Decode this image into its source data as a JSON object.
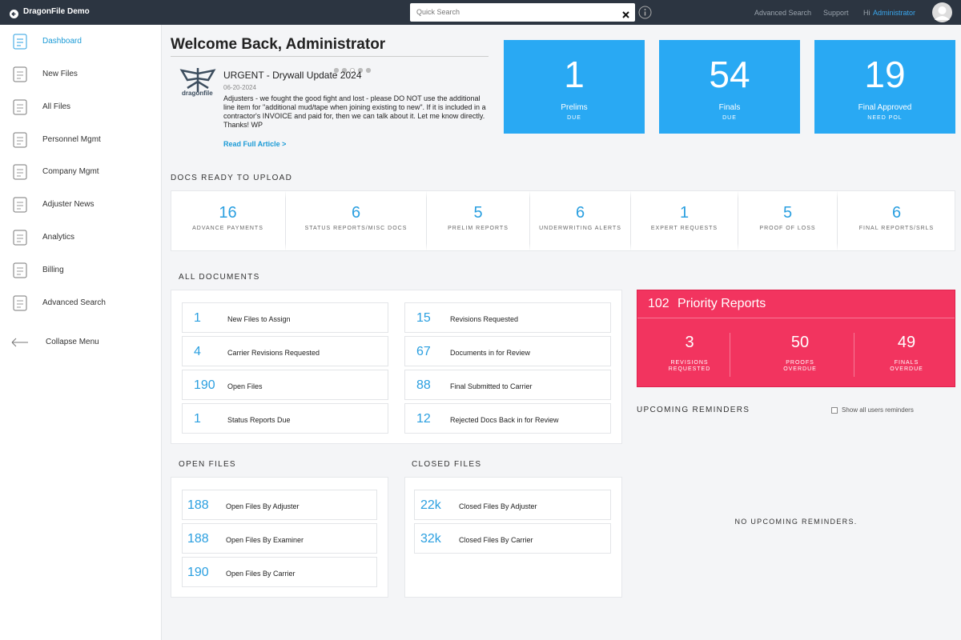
{
  "topbar": {
    "app_name": "DragonFile Demo",
    "search_placeholder": "Quick Search",
    "links": [
      "Advanced Search",
      "Support"
    ],
    "greeting": "Hi",
    "user": "Administrator"
  },
  "sidebar": {
    "items": [
      "Dashboard",
      "New Files",
      "All Files",
      "Personnel Mgmt",
      "Company Mgmt",
      "Adjuster News",
      "Analytics",
      "Billing",
      "Advanced Search",
      "Collapse Menu"
    ]
  },
  "welcome": {
    "title": "Welcome Back, Administrator"
  },
  "news": {
    "logo_text": "dragonfile",
    "title": "URGENT - Drywall Update 2024",
    "date": "06-20-2024",
    "body": "Adjusters - we fought the good fight and lost - please DO NOT use the additional line item for \"additional mud/tape when joining existing to new\". If it is included in a contractor's INVOICE and paid for, then we can talk about it. Let me know directly. Thanks! WP",
    "link": "Read Full Article >"
  },
  "stat_cards": [
    {
      "value": 1,
      "label": "Prelims",
      "sub": "DUE"
    },
    {
      "value": 54,
      "label": "Finals",
      "sub": "DUE"
    },
    {
      "value": 19,
      "label": "Final Approved",
      "sub": "NEED POL"
    }
  ],
  "docs_ready": {
    "heading": "DOCS READY TO UPLOAD",
    "items": [
      {
        "value": 16,
        "label": "ADVANCE PAYMENTS"
      },
      {
        "value": 6,
        "label": "STATUS REPORTS/MISC DOCS"
      },
      {
        "value": 5,
        "label": "PRELIM REPORTS"
      },
      {
        "value": 6,
        "label": "UNDERWRITING ALERTS"
      },
      {
        "value": 1,
        "label": "EXPERT REQUESTS"
      },
      {
        "value": 5,
        "label": "PROOF OF LOSS"
      },
      {
        "value": 6,
        "label": "FINAL REPORTS/SRLS"
      }
    ]
  },
  "all_documents": {
    "heading": "ALL DOCUMENTS",
    "items": [
      {
        "value": 1,
        "label": "New Files to Assign"
      },
      {
        "value": 15,
        "label": "Revisions Requested"
      },
      {
        "value": 4,
        "label": "Carrier Revisions Requested"
      },
      {
        "value": 67,
        "label": "Documents in for Review"
      },
      {
        "value": 190,
        "label": "Open Files"
      },
      {
        "value": 88,
        "label": "Final Submitted to Carrier"
      },
      {
        "value": 1,
        "label": "Status Reports Due"
      },
      {
        "value": 12,
        "label": "Rejected Docs Back in for Review"
      }
    ]
  },
  "priority": {
    "count": 102,
    "title": "Priority Reports",
    "items": [
      {
        "value": 3,
        "label": "REVISIONS REQUESTED"
      },
      {
        "value": 50,
        "label": "PROOFS OVERDUE"
      },
      {
        "value": 49,
        "label": "FINALS OVERDUE"
      }
    ]
  },
  "reminders": {
    "heading": "UPCOMING REMINDERS",
    "checkbox_label": "Show all users reminders",
    "empty": "NO UPCOMING REMINDERS."
  },
  "open_files": {
    "heading": "OPEN FILES",
    "items": [
      {
        "value": 188,
        "label": "Open Files By Adjuster"
      },
      {
        "value": 188,
        "label": "Open Files By Examiner"
      },
      {
        "value": 190,
        "label": "Open Files By Carrier"
      }
    ]
  },
  "closed_files": {
    "heading": "CLOSED FILES",
    "items": [
      {
        "value": "22k",
        "label": "Closed Files By Adjuster"
      },
      {
        "value": "32k",
        "label": "Closed Files By Carrier"
      }
    ]
  }
}
